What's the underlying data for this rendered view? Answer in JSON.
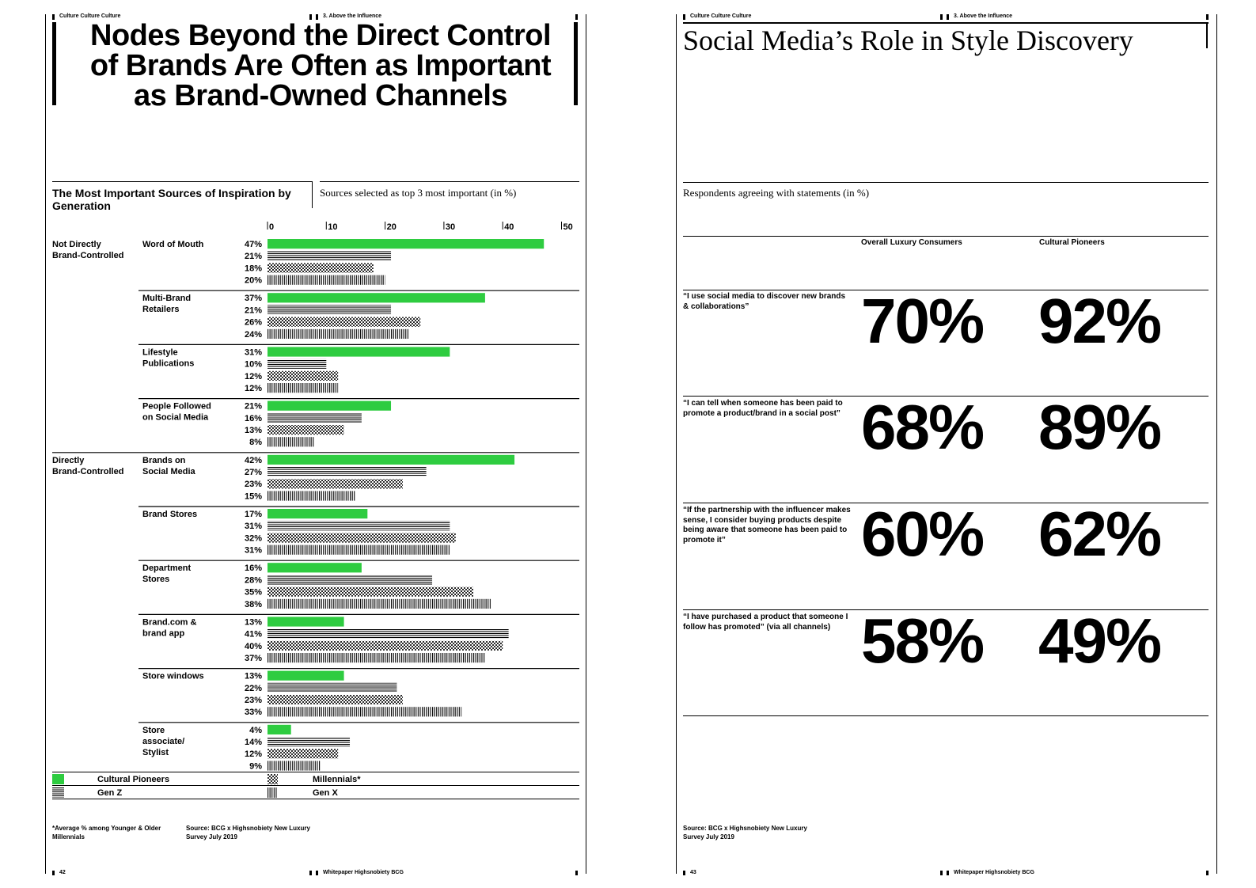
{
  "left_page": {
    "header_left": "Culture Culture Culture",
    "header_right": "3. Above the Influence",
    "title_lines": [
      "Nodes Beyond the Direct Control",
      "of Brands Are Often as Important",
      "as Brand-Owned Channels"
    ],
    "chart_title": "The Most Important Sources of Inspiration by Generation",
    "chart_subtitle": "Sources selected as top 3 most important (in %)",
    "footnote": "*Average % among Younger & Older Millennials",
    "source": "Source: BCG x Highsnobiety New Luxury Survey July 2019",
    "page_number": "42",
    "footer": "Whitepaper Highsnobiety BCG"
  },
  "chart_data": {
    "type": "bar",
    "orientation": "horizontal",
    "title": "The Most Important Sources of Inspiration by Generation",
    "subtitle": "Sources selected as top 3 most important (in %)",
    "xlim": [
      0,
      50
    ],
    "ticks": [
      "0",
      "10",
      "20",
      "30",
      "40",
      "50"
    ],
    "groups": [
      {
        "name": "Not Directly Brand-Controlled",
        "categories": [
          {
            "label": "Word of Mouth",
            "values": [
              47,
              21,
              18,
              20
            ]
          },
          {
            "label": "Multi-Brand Retailers",
            "values": [
              37,
              21,
              26,
              24
            ]
          },
          {
            "label": "Lifestyle Publications",
            "values": [
              31,
              10,
              12,
              12
            ]
          },
          {
            "label": "People Followed on Social Media",
            "values": [
              21,
              16,
              13,
              8
            ]
          }
        ]
      },
      {
        "name": "Directly Brand-Controlled",
        "categories": [
          {
            "label": "Brands on Social Media",
            "values": [
              42,
              27,
              23,
              15
            ]
          },
          {
            "label": "Brand Stores",
            "values": [
              17,
              31,
              32,
              31
            ]
          },
          {
            "label": "Department Stores",
            "values": [
              16,
              28,
              35,
              38
            ]
          },
          {
            "label": "Brand.com & brand app",
            "values": [
              13,
              41,
              40,
              37
            ]
          },
          {
            "label": "Store windows",
            "values": [
              13,
              22,
              23,
              33
            ]
          },
          {
            "label": "Store associate/ Stylist",
            "values": [
              4,
              14,
              12,
              9
            ]
          }
        ]
      }
    ],
    "series": [
      {
        "name": "Cultural Pioneers",
        "fill": "solid",
        "color": "#2ecc40"
      },
      {
        "name": "Gen Z",
        "fill": "horizontal-lines"
      },
      {
        "name": "Millennials*",
        "fill": "dots"
      },
      {
        "name": "Gen X",
        "fill": "vertical-lines"
      }
    ]
  },
  "right_page": {
    "header_left": "Culture Culture Culture",
    "header_right": "3. Above the Influence",
    "title": "Social Media’s Role in Style Discovery",
    "subtitle": "Respondents agreeing with statements (in %)",
    "col1": "Overall Luxury Consumers",
    "col2": "Cultural Pioneers",
    "rows": [
      {
        "statement": "“I use social media to discover new brands & collaborations”",
        "overall": "70%",
        "pioneers": "92%"
      },
      {
        "statement": "“I can tell when someone has been paid to promote a product/brand in a social post”",
        "overall": "68%",
        "pioneers": "89%"
      },
      {
        "statement": "“If the partnership with the influencer makes sense, I consider buying products despite being aware that someone has been paid to promote it”",
        "overall": "60%",
        "pioneers": "62%"
      },
      {
        "statement": "“I have purchased a product that someone I follow has promoted” (via all channels)",
        "overall": "58%",
        "pioneers": "49%"
      }
    ],
    "source": "Source: BCG x Highsnobiety New Luxury Survey July 2019",
    "page_number": "43",
    "footer": "Whitepaper Highsnobiety BCG"
  }
}
